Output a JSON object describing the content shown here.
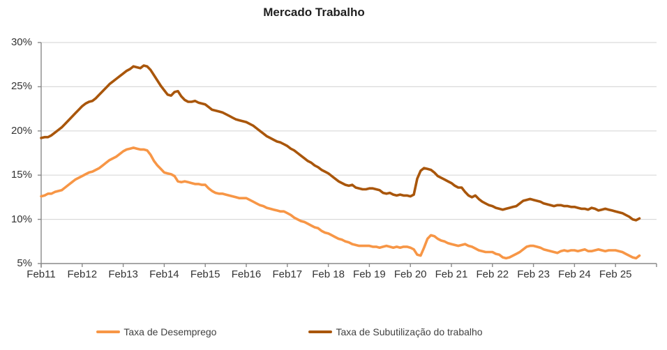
{
  "title": "Mercado Trabalho",
  "colors": {
    "series_desemprego": "#F79646",
    "series_subutilizacao": "#A9560B",
    "gridline": "#D9D9D9",
    "axis": "#898989",
    "text": "#333333",
    "title_text": "#1F1F1F",
    "background": "#FFFFFF"
  },
  "legend": {
    "position": "bottom",
    "items": [
      {
        "label": "Taxa de Desemprego",
        "color": "#F79646"
      },
      {
        "label": "Taxa de Subutilização do trabalho",
        "color": "#A9560B"
      }
    ]
  },
  "chart_data": {
    "type": "line",
    "title": "Mercado Trabalho",
    "xlabel": "",
    "ylabel": "",
    "frequency": "monthly",
    "x_start": "2011-02",
    "x_end": "2025-09",
    "ylim": [
      5,
      30
    ],
    "grid": "horizontal",
    "legend_position": "bottom",
    "y_tick_values": [
      30,
      25,
      20,
      15,
      10,
      5
    ],
    "y_tick_labels": [
      "30%",
      "25%",
      "20%",
      "15%",
      "10%",
      "5%"
    ],
    "x_tick_labels": [
      "Feb11",
      "Feb12",
      "Feb13",
      "Feb14",
      "Feb15",
      "Feb16",
      "Feb17",
      "Feb 18",
      "Feb 19",
      "Feb 20",
      "Feb 21",
      "Feb 22",
      "Feb 23",
      "Feb 24",
      "Feb 25"
    ],
    "series": [
      {
        "name": "Taxa de Desemprego",
        "color": "#F79646",
        "values": [
          12.6,
          12.7,
          12.9,
          12.9,
          13.1,
          13.2,
          13.3,
          13.6,
          13.9,
          14.2,
          14.5,
          14.7,
          14.9,
          15.1,
          15.3,
          15.4,
          15.6,
          15.8,
          16.1,
          16.4,
          16.7,
          16.9,
          17.1,
          17.4,
          17.7,
          17.9,
          18.0,
          18.1,
          18.0,
          17.9,
          17.9,
          17.8,
          17.3,
          16.6,
          16.1,
          15.7,
          15.3,
          15.2,
          15.1,
          14.9,
          14.3,
          14.2,
          14.3,
          14.2,
          14.1,
          14.0,
          14.0,
          13.9,
          13.9,
          13.5,
          13.2,
          13.0,
          12.9,
          12.9,
          12.8,
          12.7,
          12.6,
          12.5,
          12.4,
          12.4,
          12.4,
          12.2,
          12.0,
          11.8,
          11.6,
          11.5,
          11.3,
          11.2,
          11.1,
          11.0,
          10.9,
          10.9,
          10.7,
          10.5,
          10.2,
          10.0,
          9.8,
          9.7,
          9.5,
          9.3,
          9.1,
          9.0,
          8.7,
          8.5,
          8.4,
          8.2,
          8.0,
          7.8,
          7.7,
          7.5,
          7.4,
          7.2,
          7.1,
          7.0,
          7.0,
          7.0,
          7.0,
          6.9,
          6.9,
          6.8,
          6.9,
          7.0,
          6.9,
          6.8,
          6.9,
          6.8,
          6.9,
          6.9,
          6.8,
          6.6,
          6.0,
          5.9,
          6.8,
          7.8,
          8.2,
          8.1,
          7.8,
          7.6,
          7.5,
          7.3,
          7.2,
          7.1,
          7.0,
          7.1,
          7.2,
          7.0,
          6.9,
          6.7,
          6.5,
          6.4,
          6.3,
          6.3,
          6.3,
          6.1,
          6.0,
          5.7,
          5.6,
          5.7,
          5.9,
          6.1,
          6.3,
          6.6,
          6.9,
          7.0,
          7.0,
          6.9,
          6.8,
          6.6,
          6.5,
          6.4,
          6.3,
          6.2,
          6.4,
          6.5,
          6.4,
          6.5,
          6.5,
          6.4,
          6.5,
          6.6,
          6.4,
          6.4,
          6.5,
          6.6,
          6.5,
          6.4,
          6.5,
          6.5,
          6.5,
          6.4,
          6.3,
          6.1,
          5.9,
          5.7,
          5.6,
          5.9
        ]
      },
      {
        "name": "Taxa de Subutilização do trabalho",
        "color": "#A9560B",
        "values": [
          19.2,
          19.3,
          19.3,
          19.5,
          19.8,
          20.1,
          20.4,
          20.8,
          21.2,
          21.6,
          22.0,
          22.4,
          22.8,
          23.1,
          23.3,
          23.4,
          23.7,
          24.1,
          24.5,
          24.9,
          25.3,
          25.6,
          25.9,
          26.2,
          26.5,
          26.8,
          27.0,
          27.3,
          27.2,
          27.1,
          27.4,
          27.3,
          26.9,
          26.3,
          25.7,
          25.1,
          24.6,
          24.1,
          24.0,
          24.4,
          24.5,
          23.9,
          23.5,
          23.3,
          23.3,
          23.4,
          23.2,
          23.1,
          23.0,
          22.7,
          22.4,
          22.3,
          22.2,
          22.1,
          21.9,
          21.7,
          21.5,
          21.3,
          21.2,
          21.1,
          21.0,
          20.8,
          20.6,
          20.3,
          20.0,
          19.7,
          19.4,
          19.2,
          19.0,
          18.8,
          18.7,
          18.5,
          18.3,
          18.0,
          17.8,
          17.5,
          17.2,
          16.9,
          16.6,
          16.4,
          16.1,
          15.9,
          15.6,
          15.4,
          15.2,
          14.9,
          14.6,
          14.3,
          14.1,
          13.9,
          13.8,
          13.9,
          13.6,
          13.5,
          13.4,
          13.4,
          13.5,
          13.5,
          13.4,
          13.3,
          13.0,
          12.9,
          13.0,
          12.8,
          12.7,
          12.8,
          12.7,
          12.7,
          12.6,
          12.8,
          14.6,
          15.5,
          15.8,
          15.7,
          15.6,
          15.3,
          14.9,
          14.7,
          14.5,
          14.3,
          14.1,
          13.8,
          13.6,
          13.6,
          13.1,
          12.7,
          12.5,
          12.7,
          12.3,
          12.0,
          11.8,
          11.6,
          11.5,
          11.3,
          11.2,
          11.1,
          11.2,
          11.3,
          11.4,
          11.5,
          11.8,
          12.1,
          12.2,
          12.3,
          12.2,
          12.1,
          12.0,
          11.8,
          11.7,
          11.6,
          11.5,
          11.6,
          11.6,
          11.5,
          11.5,
          11.4,
          11.4,
          11.3,
          11.2,
          11.2,
          11.1,
          11.3,
          11.2,
          11.0,
          11.1,
          11.2,
          11.1,
          11.0,
          10.9,
          10.8,
          10.7,
          10.5,
          10.3,
          10.0,
          9.9,
          10.1
        ]
      }
    ]
  }
}
